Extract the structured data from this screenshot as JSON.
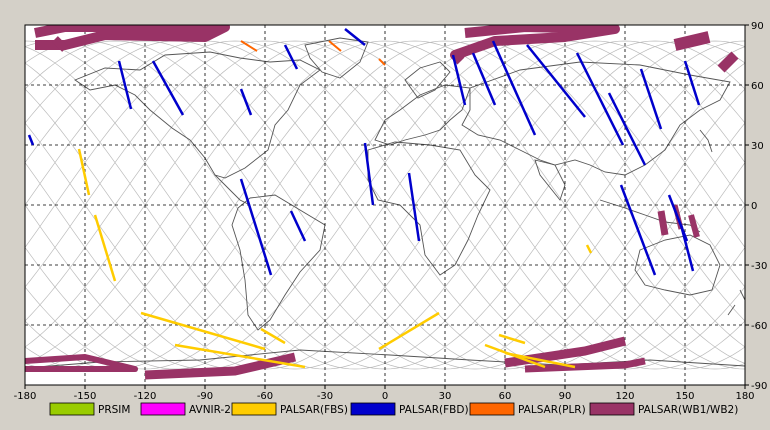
{
  "map": {
    "lon_range": [
      -180,
      180
    ],
    "lat_range": [
      -90,
      90
    ],
    "grid_step_deg": 30,
    "grid": "dashed",
    "x_ticks": [
      "-180",
      "-150",
      "-120",
      "-90",
      "-60",
      "-30",
      "0",
      "30",
      "60",
      "90",
      "120",
      "150",
      "180"
    ],
    "y_ticks": [
      "90",
      "60",
      "30",
      "0",
      "-30",
      "-60",
      "-90"
    ],
    "colors": {
      "background": "#d4d0c8",
      "map_bg": "#ffffff",
      "coast": "#555555",
      "orbit": "#bbbbbb"
    }
  },
  "legend": [
    {
      "label": "PRSIM",
      "color": "#99cc00"
    },
    {
      "label": "AVNIR-2",
      "color": "#ff00ff"
    },
    {
      "label": "PALSAR(FBS)",
      "color": "#ffcc00"
    },
    {
      "label": "PALSAR(FBD)",
      "color": "#0000cc"
    },
    {
      "label": "PALSAR(PLR)",
      "color": "#ff6600"
    },
    {
      "label": "PALSAR(WB1/WB2)",
      "color": "#993366"
    }
  ],
  "swaths": {
    "fbd": [
      [
        [
          -133,
          72
        ],
        [
          -127,
          48
        ]
      ],
      [
        [
          -116,
          72
        ],
        [
          -101,
          45
        ]
      ],
      [
        [
          -72,
          58
        ],
        [
          -67,
          45
        ]
      ],
      [
        [
          -50,
          80
        ],
        [
          -44,
          68
        ]
      ],
      [
        [
          -20,
          88
        ],
        [
          -10,
          80
        ]
      ],
      [
        [
          34,
          75
        ],
        [
          40,
          50
        ]
      ],
      [
        [
          44,
          76
        ],
        [
          55,
          50
        ]
      ],
      [
        [
          54,
          82
        ],
        [
          75,
          35
        ]
      ],
      [
        [
          -10,
          31
        ],
        [
          -6,
          0
        ]
      ],
      [
        [
          -72,
          13
        ],
        [
          -57,
          -35
        ]
      ],
      [
        [
          -47,
          -3
        ],
        [
          -40,
          -18
        ]
      ],
      [
        [
          12,
          16
        ],
        [
          17,
          -18
        ]
      ],
      [
        [
          71,
          80
        ],
        [
          100,
          44
        ]
      ],
      [
        [
          96,
          76
        ],
        [
          119,
          30
        ]
      ],
      [
        [
          112,
          56
        ],
        [
          130,
          20
        ]
      ],
      [
        [
          128,
          68
        ],
        [
          138,
          38
        ]
      ],
      [
        [
          150,
          72
        ],
        [
          157,
          50
        ]
      ],
      [
        [
          118,
          10
        ],
        [
          135,
          -35
        ]
      ],
      [
        [
          142,
          5
        ],
        [
          151,
          -18
        ]
      ],
      [
        [
          148,
          -10
        ],
        [
          154,
          -33
        ]
      ],
      [
        [
          -178,
          35
        ],
        [
          -176,
          30
        ]
      ]
    ],
    "fbs": [
      [
        [
          -153,
          28
        ],
        [
          -148,
          5
        ]
      ],
      [
        [
          -145,
          -5
        ],
        [
          -135,
          -38
        ]
      ],
      [
        [
          -122,
          -54
        ],
        [
          -60,
          -72
        ]
      ],
      [
        [
          -105,
          -70
        ],
        [
          -40,
          -81
        ]
      ],
      [
        [
          -62,
          -62
        ],
        [
          -50,
          -69
        ]
      ],
      [
        [
          -3,
          -72
        ],
        [
          27,
          -54
        ]
      ],
      [
        [
          50,
          -70
        ],
        [
          80,
          -81
        ]
      ],
      [
        [
          57,
          -65
        ],
        [
          70,
          -69
        ]
      ],
      [
        [
          60,
          -74
        ],
        [
          95,
          -81
        ]
      ],
      [
        [
          101,
          -20
        ],
        [
          103,
          -24
        ]
      ]
    ],
    "plr": [
      [
        [
          -72,
          82
        ],
        [
          -64,
          77
        ]
      ],
      [
        [
          -28,
          82
        ],
        [
          -22,
          77
        ]
      ],
      [
        [
          -3,
          73
        ],
        [
          0,
          70
        ]
      ]
    ],
    "wb": [
      {
        "pts": [
          [
            -175,
            86
          ],
          [
            -160,
            89
          ],
          [
            -80,
            89
          ],
          [
            -90,
            84
          ],
          [
            -140,
            85
          ],
          [
            -160,
            80
          ],
          [
            -175,
            80
          ]
        ],
        "w": 10
      },
      {
        "pts": [
          [
            -165,
            83
          ],
          [
            -160,
            78
          ]
        ],
        "w": 8
      },
      {
        "pts": [
          [
            40,
            86
          ],
          [
            70,
            89
          ],
          [
            115,
            88
          ],
          [
            90,
            84
          ],
          [
            55,
            82
          ],
          [
            35,
            75
          ],
          [
            38,
            72
          ]
        ],
        "w": 10
      },
      {
        "pts": [
          [
            145,
            80
          ],
          [
            162,
            84
          ]
        ],
        "w": 12
      },
      {
        "pts": [
          [
            168,
            68
          ],
          [
            175,
            75
          ]
        ],
        "w": 10
      },
      {
        "pts": [
          [
            -180,
            -78
          ],
          [
            -150,
            -76
          ],
          [
            -125,
            -82
          ],
          [
            -180,
            -82
          ]
        ],
        "w": 6
      },
      {
        "pts": [
          [
            -120,
            -85
          ],
          [
            -75,
            -83
          ],
          [
            -45,
            -76
          ]
        ],
        "w": 9
      },
      {
        "pts": [
          [
            60,
            -79
          ],
          [
            100,
            -73
          ],
          [
            120,
            -68
          ]
        ],
        "w": 9
      },
      {
        "pts": [
          [
            70,
            -82
          ],
          [
            120,
            -80
          ],
          [
            130,
            -78
          ]
        ],
        "w": 7
      },
      {
        "pts": [
          [
            138,
            -3
          ],
          [
            140,
            -15
          ]
        ],
        "w": 7
      },
      {
        "pts": [
          [
            145,
            0
          ],
          [
            148,
            -12
          ]
        ],
        "w": 5
      },
      {
        "pts": [
          [
            153,
            -5
          ],
          [
            156,
            -16
          ]
        ],
        "w": 6
      }
    ]
  }
}
